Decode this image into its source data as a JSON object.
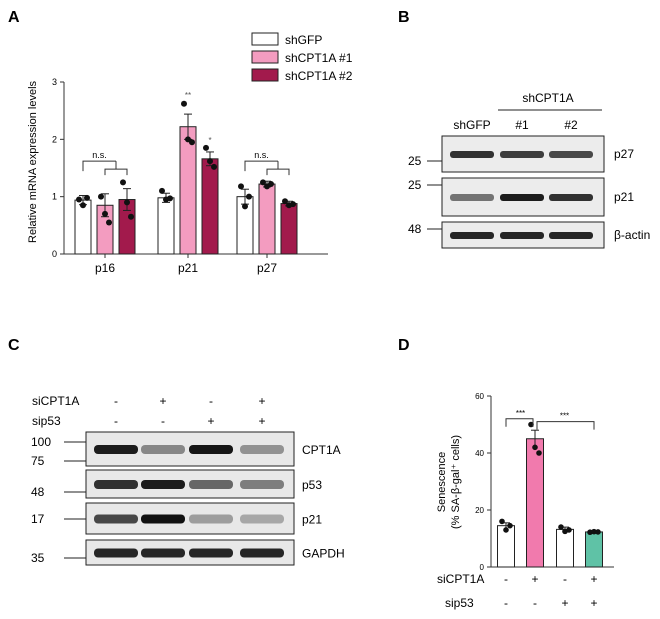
{
  "panel_labels": {
    "A": "A",
    "B": "B",
    "C": "C",
    "D": "D"
  },
  "chart_data": [
    {
      "type": "bar",
      "panel": "A",
      "ylabel": "Relative mRNA expression levels",
      "ylim": [
        0,
        3
      ],
      "yticks": [
        "0",
        "1",
        "2",
        "3"
      ],
      "categories": [
        "p16",
        "p21",
        "p27"
      ],
      "series": [
        {
          "name": "shGFP",
          "color": "#ffffff",
          "values": [
            0.94,
            0.98,
            1.0
          ],
          "errors": [
            0.08,
            0.08,
            0.13
          ],
          "points": [
            [
              0.95,
              0.85,
              0.98
            ],
            [
              1.1,
              0.95,
              0.97
            ],
            [
              1.18,
              0.83,
              1.0
            ]
          ]
        },
        {
          "name": "shCPT1A #1",
          "color": "#f39cc0",
          "values": [
            0.85,
            2.22,
            1.22
          ],
          "errors": [
            0.2,
            0.22,
            0.05
          ],
          "points": [
            [
              1.0,
              0.7,
              0.55
            ],
            [
              2.62,
              2.0,
              1.95
            ],
            [
              1.25,
              1.18,
              1.22
            ]
          ]
        },
        {
          "name": "shCPT1A #2",
          "color": "#a21a4c",
          "values": [
            0.95,
            1.66,
            0.88
          ],
          "errors": [
            0.19,
            0.12,
            0.04
          ],
          "points": [
            [
              1.25,
              0.9,
              0.65
            ],
            [
              1.85,
              1.62,
              1.52
            ],
            [
              0.92,
              0.85,
              0.87
            ]
          ]
        }
      ],
      "annotations": [
        {
          "text": "n.s.",
          "category": "p16"
        },
        {
          "text": "**",
          "category": "p21",
          "series": "shCPT1A #1"
        },
        {
          "text": "*",
          "category": "p21",
          "series": "shCPT1A #2"
        },
        {
          "text": "n.s.",
          "category": "p27"
        }
      ]
    },
    {
      "type": "bar",
      "panel": "D",
      "ylabel": "Senescence",
      "ylabel2": "(% SA-β-gal⁺ cells)",
      "ylim": [
        0,
        60
      ],
      "yticks": [
        "0",
        "20",
        "40",
        "60"
      ],
      "row_labels": [
        "siCPT1A",
        "sip53"
      ],
      "conditions": [
        [
          "-",
          "-"
        ],
        [
          "+",
          "-"
        ],
        [
          "-",
          "+"
        ],
        [
          "+",
          "+"
        ]
      ],
      "values": [
        14.5,
        45,
        13.2,
        12.3
      ],
      "errors": [
        1.0,
        3.0,
        0.8,
        0.3
      ],
      "colors": [
        "#ffffff",
        "#f17aad",
        "#ffffff",
        "#5fc2a6"
      ],
      "points": [
        [
          16,
          13,
          14.5
        ],
        [
          50,
          42,
          40
        ],
        [
          14,
          12.5,
          13
        ],
        [
          12.2,
          12.4,
          12.3
        ]
      ],
      "annotations": [
        {
          "text": "***",
          "between": [
            0,
            1
          ]
        },
        {
          "text": "***",
          "between": [
            1,
            3
          ]
        }
      ]
    }
  ],
  "blot_b": {
    "group_label": "shCPT1A",
    "lanes": [
      "shGFP",
      "#1",
      "#2"
    ],
    "rows": [
      {
        "marker": "25",
        "protein": "p27",
        "intensity": [
          0.85,
          0.8,
          0.75
        ]
      },
      {
        "marker": "25",
        "protein": "p21",
        "intensity": [
          0.55,
          0.95,
          0.85
        ]
      },
      {
        "marker": "48",
        "protein": "β-actin",
        "intensity": [
          0.9,
          0.9,
          0.9
        ]
      }
    ]
  },
  "blot_c": {
    "row_labels": [
      "siCPT1A",
      "sip53"
    ],
    "conditions": [
      [
        "-",
        "-"
      ],
      [
        "+",
        "-"
      ],
      [
        "-",
        "+"
      ],
      [
        "+",
        "+"
      ]
    ],
    "rows": [
      {
        "markers": [
          "100",
          "75"
        ],
        "protein": "CPT1A",
        "intensity": [
          0.95,
          0.45,
          0.98,
          0.4
        ]
      },
      {
        "markers": [
          "48"
        ],
        "protein": "p53",
        "intensity": [
          0.85,
          0.95,
          0.6,
          0.5
        ]
      },
      {
        "markers": [
          "17"
        ],
        "protein": "p21",
        "intensity": [
          0.75,
          1.0,
          0.35,
          0.3
        ]
      },
      {
        "markers": [
          "35"
        ],
        "protein": "GAPDH",
        "intensity": [
          0.9,
          0.9,
          0.9,
          0.9
        ]
      }
    ]
  }
}
